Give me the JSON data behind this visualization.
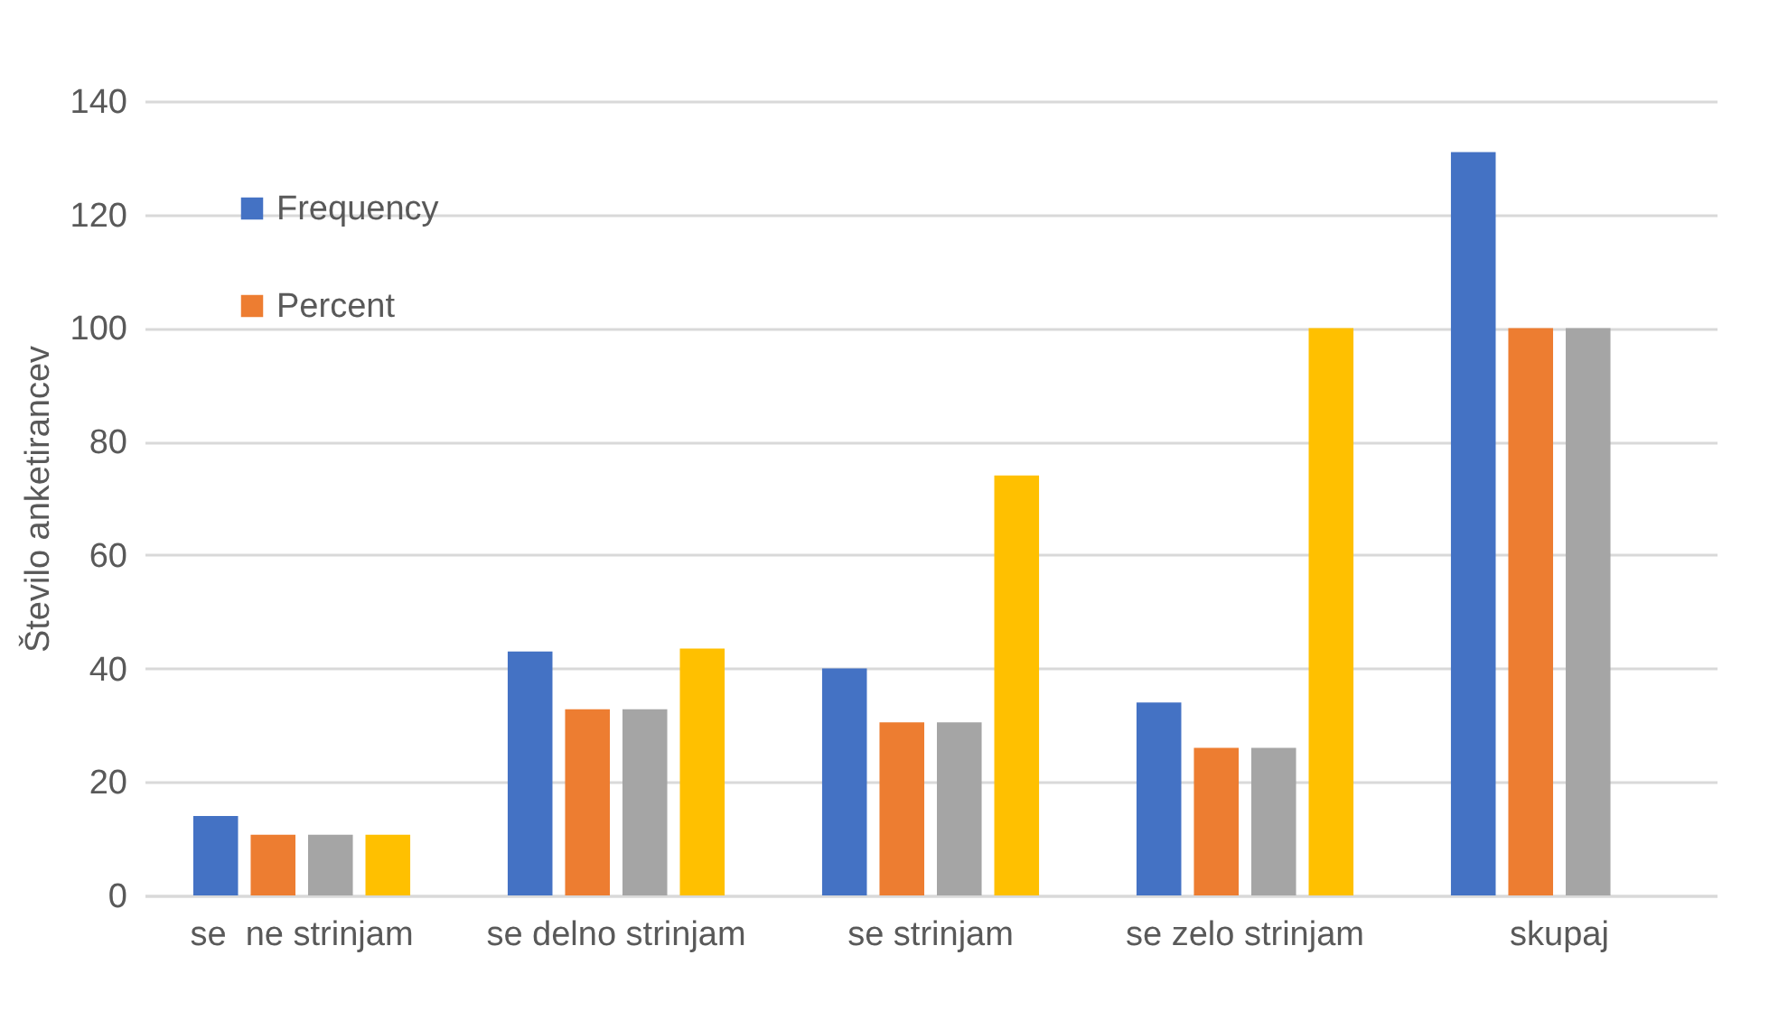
{
  "chart_data": {
    "type": "bar",
    "ylabel": "Število anketirancev",
    "categories": [
      "se  ne strinjam",
      "se delno strinjam",
      "se strinjam",
      "se zelo strinjam",
      "skupaj"
    ],
    "series": [
      {
        "name": "Frequency",
        "color": "#4472c4",
        "values": [
          14,
          43,
          40,
          34,
          131
        ]
      },
      {
        "name": "Percent",
        "color": "#ed7d31",
        "values": [
          10.7,
          32.8,
          30.5,
          26,
          100
        ]
      },
      {
        "color": "#a5a5a5",
        "values": [
          10.7,
          32.8,
          30.5,
          26,
          100
        ]
      },
      {
        "color": "#ffc000",
        "values": [
          10.7,
          43.5,
          74,
          100,
          null
        ]
      }
    ],
    "ylim": [
      0,
      140
    ],
    "yticks": [
      0,
      20,
      40,
      60,
      80,
      100,
      120,
      140
    ],
    "grid": "y",
    "legend": "top left"
  }
}
